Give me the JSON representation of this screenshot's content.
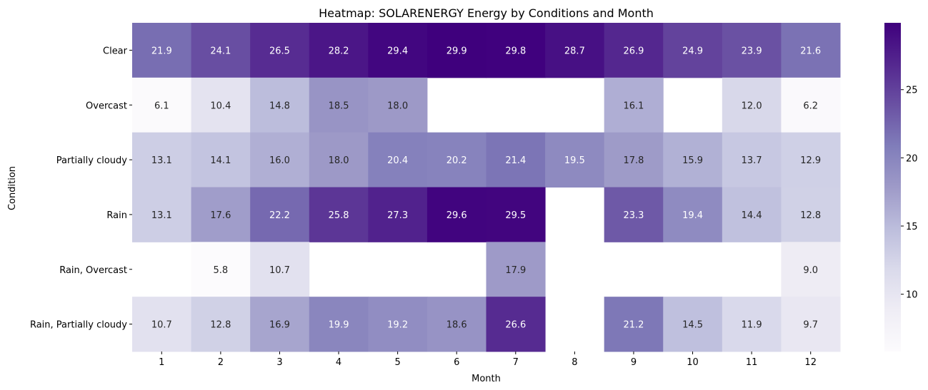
{
  "chart_data": {
    "type": "heatmap",
    "title": "Heatmap: SOLARENERGY Energy by Conditions and Month",
    "xlabel": "Month",
    "ylabel": "Condition",
    "x": [
      "1",
      "2",
      "3",
      "4",
      "5",
      "6",
      "7",
      "8",
      "9",
      "10",
      "11",
      "12"
    ],
    "y": [
      "Clear",
      "Overcast",
      "Partially cloudy",
      "Rain",
      "Rain, Overcast",
      "Rain, Partially cloudy"
    ],
    "values": [
      [
        21.9,
        24.1,
        26.5,
        28.2,
        29.4,
        29.9,
        29.8,
        28.7,
        26.9,
        24.9,
        23.9,
        21.6
      ],
      [
        6.1,
        10.4,
        14.8,
        18.5,
        18.0,
        null,
        null,
        null,
        16.1,
        null,
        12.0,
        6.2
      ],
      [
        13.1,
        14.1,
        16.0,
        18.0,
        20.4,
        20.2,
        21.4,
        19.5,
        17.8,
        15.9,
        13.7,
        12.9
      ],
      [
        13.1,
        17.6,
        22.2,
        25.8,
        27.3,
        29.6,
        29.5,
        null,
        23.3,
        19.4,
        14.4,
        12.8
      ],
      [
        null,
        5.8,
        10.7,
        null,
        null,
        null,
        17.9,
        null,
        null,
        null,
        null,
        9.0
      ],
      [
        10.7,
        12.8,
        16.9,
        19.9,
        19.2,
        18.6,
        26.6,
        null,
        21.2,
        14.5,
        11.9,
        9.7
      ]
    ],
    "colormap": "Purples",
    "vmin": 5.8,
    "vmax": 29.9,
    "colorbar_ticks": [
      10,
      15,
      20,
      25
    ],
    "grid": false,
    "legend": "colorbar-right"
  }
}
